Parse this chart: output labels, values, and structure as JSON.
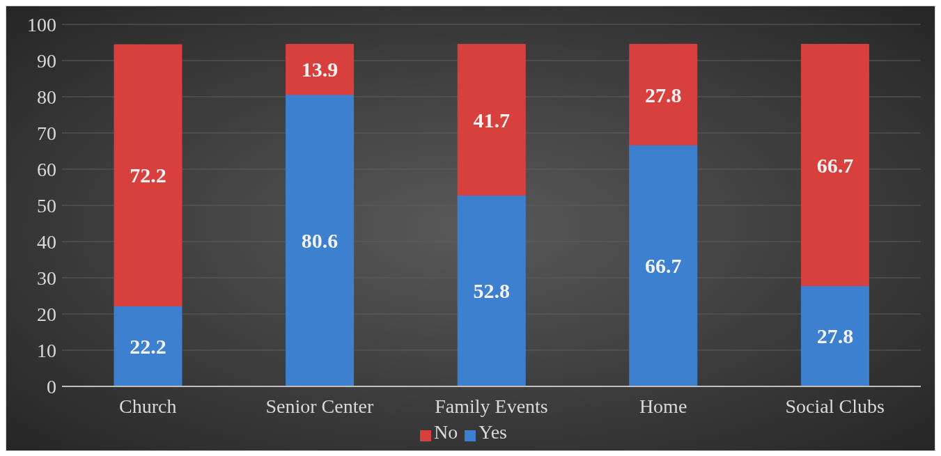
{
  "chart_data": {
    "type": "bar",
    "stacked": true,
    "categories": [
      "Church",
      "Senior Center",
      "Family Events",
      "Home",
      "Social Clubs"
    ],
    "series": [
      {
        "name": "Yes",
        "color": "#3e80d0",
        "values": [
          22.2,
          80.6,
          52.8,
          66.7,
          27.8
        ]
      },
      {
        "name": "No",
        "color": "#d8403d",
        "values": [
          72.2,
          13.9,
          41.7,
          27.8,
          66.7
        ]
      }
    ],
    "ylim": [
      0,
      100
    ],
    "yticks": [
      0,
      10,
      20,
      30,
      40,
      50,
      60,
      70,
      80,
      90,
      100
    ],
    "grid": "y",
    "legend": "bottom",
    "data_labels": true
  }
}
